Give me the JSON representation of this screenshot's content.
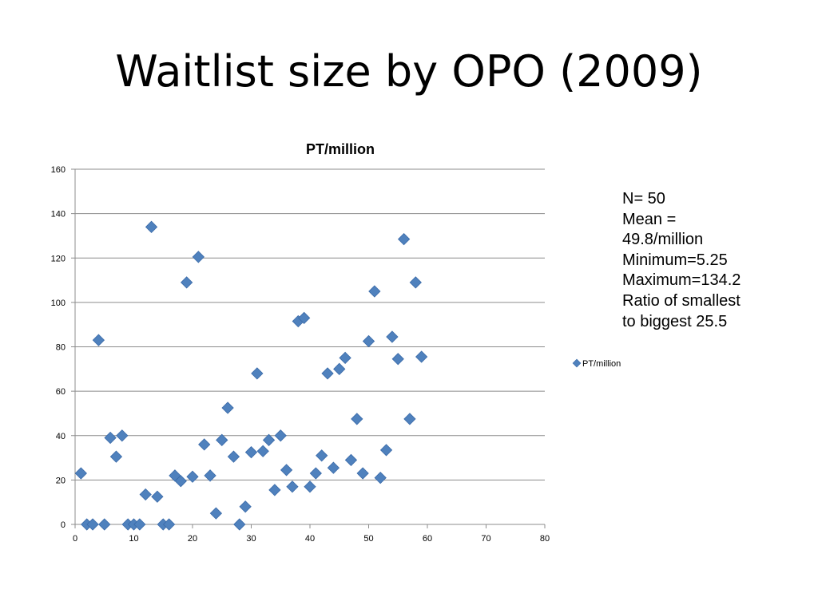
{
  "slide": {
    "title": "Waitlist size by OPO (2009)"
  },
  "stats": {
    "lines": [
      "N= 50",
      "Mean =",
      "49.8/million",
      "Minimum=5.25",
      "Maximum=134.2",
      "Ratio of smallest",
      "to biggest 25.5"
    ]
  },
  "chart_data": {
    "type": "scatter",
    "title": "PT/million",
    "xlabel": "",
    "ylabel": "",
    "xlim": [
      0,
      80
    ],
    "ylim": [
      0,
      160
    ],
    "x_ticks": [
      0,
      10,
      20,
      30,
      40,
      50,
      60,
      70,
      80
    ],
    "y_ticks": [
      0,
      20,
      40,
      60,
      80,
      100,
      120,
      140,
      160
    ],
    "grid": "horizontal",
    "legend": {
      "position": "right",
      "entries": [
        "PT/million"
      ]
    },
    "marker_color": "#4F81BD",
    "series": [
      {
        "name": "PT/million",
        "x": [
          1,
          2,
          3,
          4,
          5,
          6,
          7,
          8,
          9,
          10,
          11,
          12,
          13,
          14,
          15,
          16,
          17,
          18,
          19,
          20,
          21,
          22,
          23,
          24,
          25,
          26,
          27,
          28,
          29,
          30,
          31,
          32,
          33,
          34,
          35,
          36,
          37,
          38,
          39,
          40,
          41,
          42,
          43,
          44,
          45,
          46,
          47,
          48,
          49,
          50,
          51,
          52,
          53,
          54,
          55,
          56,
          57,
          58,
          59
        ],
        "y": [
          23,
          0,
          0,
          83,
          0,
          39,
          30.5,
          40,
          0,
          0,
          0,
          13.5,
          134,
          12.5,
          0,
          0,
          22,
          19.5,
          109,
          21.5,
          120.5,
          36,
          22,
          5,
          38,
          52.5,
          30.5,
          0,
          8,
          32.5,
          68,
          33,
          38,
          15.5,
          40,
          24.5,
          17,
          91.5,
          93,
          17,
          23,
          31,
          68,
          25.5,
          70,
          75,
          29,
          47.5,
          23,
          82.5,
          105,
          21,
          33.5,
          84.5,
          74.5,
          128.5,
          47.5,
          109,
          75.5
        ]
      }
    ]
  }
}
